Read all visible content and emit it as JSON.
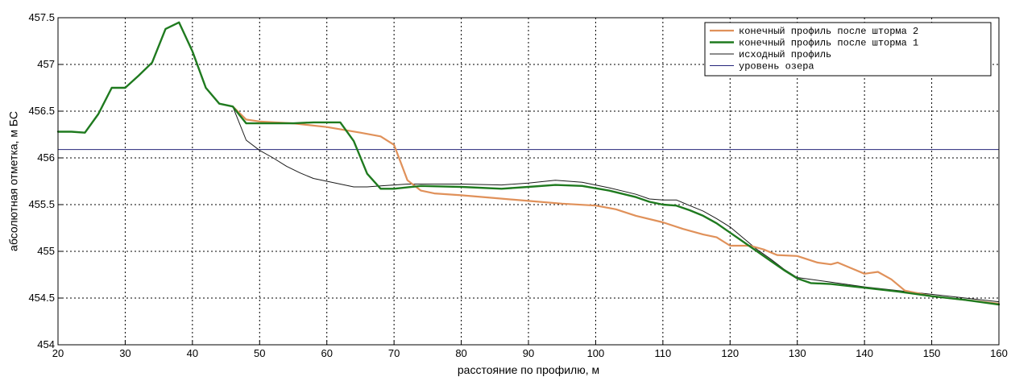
{
  "chart_data": {
    "type": "line",
    "title": "",
    "xlabel": "расстояние по профилю, м",
    "ylabel": "абсолютная отметка, м БС",
    "xlim": [
      20,
      160
    ],
    "ylim": [
      454,
      457.5
    ],
    "xticks": [
      20,
      30,
      40,
      50,
      60,
      70,
      80,
      90,
      100,
      110,
      120,
      130,
      140,
      150,
      160
    ],
    "yticks": [
      454,
      454.5,
      455,
      455.5,
      456,
      456.5,
      457,
      457.5
    ],
    "xtick_labels": [
      "20",
      "30",
      "40",
      "50",
      "60",
      "70",
      "80",
      "90",
      "100",
      "110",
      "120",
      "130",
      "140",
      "150",
      "160"
    ],
    "ytick_labels": [
      "454",
      "454.5",
      "455",
      "455.5",
      "456",
      "456.5",
      "457",
      "457.5"
    ],
    "grid": true,
    "legend_position": "top-right",
    "series": [
      {
        "name": "конечный профиль после шторма 2",
        "color": "#e0915a",
        "width": 2.2,
        "points": [
          [
            46,
            456.55
          ],
          [
            48,
            456.41
          ],
          [
            50,
            456.39
          ],
          [
            55,
            456.37
          ],
          [
            60,
            456.33
          ],
          [
            65,
            456.27
          ],
          [
            68,
            456.23
          ],
          [
            70,
            456.14
          ],
          [
            71,
            455.95
          ],
          [
            72,
            455.76
          ],
          [
            74,
            455.65
          ],
          [
            76,
            455.62
          ],
          [
            80,
            455.6
          ],
          [
            85,
            455.57
          ],
          [
            90,
            455.54
          ],
          [
            95,
            455.51
          ],
          [
            100,
            455.49
          ],
          [
            103,
            455.45
          ],
          [
            106,
            455.38
          ],
          [
            110,
            455.31
          ],
          [
            113,
            455.24
          ],
          [
            116,
            455.18
          ],
          [
            118,
            455.15
          ],
          [
            120,
            455.06
          ],
          [
            123,
            455.06
          ],
          [
            125,
            455.02
          ],
          [
            127,
            454.96
          ],
          [
            130,
            454.95
          ],
          [
            133,
            454.88
          ],
          [
            135,
            454.86
          ],
          [
            136,
            454.88
          ],
          [
            138,
            454.82
          ],
          [
            140,
            454.76
          ],
          [
            142,
            454.78
          ],
          [
            144,
            454.7
          ],
          [
            146,
            454.58
          ],
          [
            150,
            454.52
          ],
          [
            155,
            454.48
          ],
          [
            160,
            454.44
          ]
        ]
      },
      {
        "name": "конечный профиль после шторма 1",
        "color": "#1f7a1f",
        "width": 2.4,
        "points": [
          [
            20,
            456.28
          ],
          [
            22,
            456.28
          ],
          [
            24,
            456.27
          ],
          [
            26,
            456.47
          ],
          [
            28,
            456.75
          ],
          [
            30,
            456.75
          ],
          [
            32,
            456.88
          ],
          [
            34,
            457.02
          ],
          [
            36,
            457.38
          ],
          [
            38,
            457.45
          ],
          [
            40,
            457.14
          ],
          [
            42,
            456.75
          ],
          [
            44,
            456.58
          ],
          [
            46,
            456.55
          ],
          [
            48,
            456.37
          ],
          [
            50,
            456.37
          ],
          [
            55,
            456.37
          ],
          [
            58,
            456.38
          ],
          [
            62,
            456.38
          ],
          [
            64,
            456.18
          ],
          [
            66,
            455.83
          ],
          [
            68,
            455.67
          ],
          [
            70,
            455.67
          ],
          [
            74,
            455.7
          ],
          [
            80,
            455.69
          ],
          [
            86,
            455.67
          ],
          [
            90,
            455.69
          ],
          [
            94,
            455.71
          ],
          [
            98,
            455.7
          ],
          [
            102,
            455.65
          ],
          [
            106,
            455.58
          ],
          [
            108,
            455.53
          ],
          [
            110,
            455.5
          ],
          [
            112,
            455.49
          ],
          [
            114,
            455.44
          ],
          [
            116,
            455.38
          ],
          [
            118,
            455.3
          ],
          [
            120,
            455.2
          ],
          [
            122,
            455.1
          ],
          [
            124,
            455.0
          ],
          [
            126,
            454.9
          ],
          [
            128,
            454.8
          ],
          [
            130,
            454.71
          ],
          [
            132,
            454.66
          ],
          [
            135,
            454.65
          ],
          [
            140,
            454.61
          ],
          [
            145,
            454.57
          ],
          [
            150,
            454.52
          ],
          [
            155,
            454.48
          ],
          [
            160,
            454.43
          ]
        ]
      },
      {
        "name": "исходный профиль",
        "color": "#1a1a1a",
        "width": 1,
        "points": [
          [
            20,
            456.28
          ],
          [
            22,
            456.28
          ],
          [
            24,
            456.27
          ],
          [
            26,
            456.47
          ],
          [
            28,
            456.75
          ],
          [
            30,
            456.75
          ],
          [
            32,
            456.88
          ],
          [
            34,
            457.02
          ],
          [
            36,
            457.38
          ],
          [
            38,
            457.45
          ],
          [
            40,
            457.14
          ],
          [
            42,
            456.75
          ],
          [
            44,
            456.58
          ],
          [
            46,
            456.55
          ],
          [
            48,
            456.19
          ],
          [
            50,
            456.08
          ],
          [
            52,
            456.0
          ],
          [
            54,
            455.91
          ],
          [
            56,
            455.84
          ],
          [
            58,
            455.78
          ],
          [
            60,
            455.75
          ],
          [
            62,
            455.72
          ],
          [
            64,
            455.69
          ],
          [
            66,
            455.69
          ],
          [
            68,
            455.7
          ],
          [
            72,
            455.72
          ],
          [
            76,
            455.72
          ],
          [
            80,
            455.72
          ],
          [
            86,
            455.71
          ],
          [
            90,
            455.73
          ],
          [
            94,
            455.76
          ],
          [
            98,
            455.74
          ],
          [
            102,
            455.68
          ],
          [
            106,
            455.61
          ],
          [
            108,
            455.56
          ],
          [
            110,
            455.55
          ],
          [
            112,
            455.55
          ],
          [
            114,
            455.49
          ],
          [
            116,
            455.43
          ],
          [
            118,
            455.35
          ],
          [
            120,
            455.26
          ],
          [
            122,
            455.14
          ],
          [
            124,
            455.02
          ],
          [
            126,
            454.92
          ],
          [
            128,
            454.81
          ],
          [
            130,
            454.72
          ],
          [
            135,
            454.67
          ],
          [
            140,
            454.62
          ],
          [
            145,
            454.58
          ],
          [
            150,
            454.54
          ],
          [
            155,
            454.5
          ],
          [
            160,
            454.46
          ]
        ]
      },
      {
        "name": "уровень озера",
        "color": "#24247a",
        "width": 1,
        "points": [
          [
            20,
            456.09
          ],
          [
            160,
            456.09
          ]
        ]
      }
    ]
  }
}
